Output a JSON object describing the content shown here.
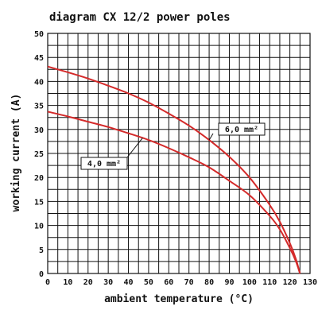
{
  "chart_data": {
    "type": "line",
    "title": "diagram CX 12/2 power poles",
    "xlabel": "ambient temperature (°C)",
    "ylabel": "working current (A)",
    "xlim": [
      0,
      130
    ],
    "ylim": [
      0,
      50
    ],
    "x_ticks": [
      0,
      10,
      20,
      30,
      40,
      50,
      60,
      70,
      80,
      90,
      100,
      110,
      120,
      130
    ],
    "y_ticks": [
      0,
      5,
      10,
      15,
      20,
      25,
      30,
      35,
      40,
      45,
      50
    ],
    "grid": true,
    "colors": {
      "curve": "#d42a2a",
      "grid": "#111111",
      "background": "#ffffff"
    },
    "series": [
      {
        "name": "6,0 mm²",
        "x": [
          0,
          10,
          20,
          30,
          40,
          50,
          60,
          70,
          80,
          90,
          100,
          110,
          115,
          120,
          123,
          125
        ],
        "y": [
          43.1,
          41.9,
          40.6,
          39.1,
          37.5,
          35.6,
          33.3,
          30.8,
          27.8,
          24.3,
          20.0,
          14.3,
          10.8,
          6.3,
          3.0,
          0
        ]
      },
      {
        "name": "4,0 mm²",
        "x": [
          0,
          10,
          20,
          30,
          40,
          50,
          60,
          70,
          80,
          90,
          100,
          110,
          115,
          120,
          123,
          125
        ],
        "y": [
          33.7,
          32.7,
          31.6,
          30.5,
          29.2,
          27.8,
          26.1,
          24.2,
          22.1,
          19.3,
          16.3,
          12.0,
          9.2,
          5.3,
          2.5,
          0
        ]
      }
    ],
    "annotations": [
      {
        "text": "6,0 mm²",
        "series": "6,0 mm²",
        "x": 80
      },
      {
        "text": "4,0 mm²",
        "series": "4,0 mm²",
        "x": 47
      }
    ]
  }
}
